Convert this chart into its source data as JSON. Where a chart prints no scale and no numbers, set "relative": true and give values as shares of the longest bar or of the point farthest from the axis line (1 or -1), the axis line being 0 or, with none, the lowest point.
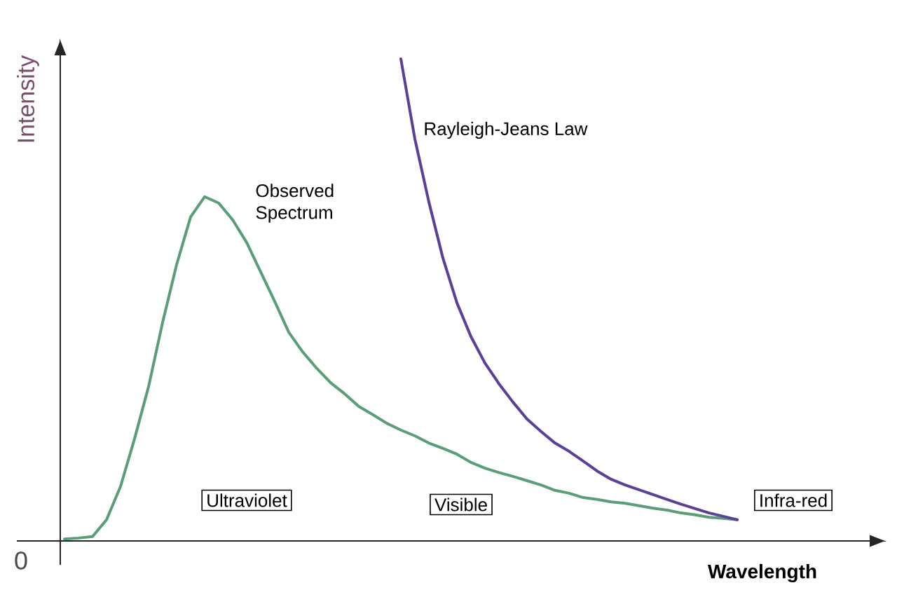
{
  "chart_data": {
    "type": "line",
    "relative": true,
    "xlabel": "Wavelength",
    "ylabel": "Intensity",
    "categories": [
      null,
      null,
      null,
      null,
      null,
      null,
      null,
      null,
      null,
      null,
      null,
      null,
      null,
      null,
      null,
      null,
      null,
      null,
      null,
      null,
      null,
      null,
      null,
      null,
      null,
      null,
      null,
      null,
      null,
      null,
      null,
      null,
      null,
      null,
      null,
      null,
      null,
      null,
      null,
      null,
      null,
      null,
      null,
      null,
      null,
      null,
      null,
      null,
      null
    ],
    "series": [
      {
        "name": "Observed Spectrum",
        "color": "#5a9e78",
        "values": [
          0.004,
          0.006,
          0.009,
          0.044,
          0.113,
          0.212,
          0.32,
          0.453,
          0.573,
          0.672,
          0.714,
          0.701,
          0.666,
          0.619,
          0.558,
          0.497,
          0.433,
          0.392,
          0.358,
          0.328,
          0.305,
          0.279,
          0.262,
          0.244,
          0.23,
          0.218,
          0.203,
          0.192,
          0.18,
          0.163,
          0.151,
          0.142,
          0.134,
          0.125,
          0.116,
          0.105,
          0.099,
          0.09,
          0.086,
          0.081,
          0.078,
          0.073,
          0.068,
          0.064,
          0.058,
          0.054,
          0.049,
          0.047,
          0.044
        ]
      },
      {
        "name": "Rayleigh-Jeans Law",
        "color": "#5b3f98",
        "values": [
          null,
          null,
          null,
          null,
          null,
          null,
          null,
          null,
          null,
          null,
          null,
          null,
          null,
          null,
          null,
          null,
          null,
          null,
          null,
          null,
          null,
          null,
          null,
          null,
          1,
          0.834,
          0.703,
          0.587,
          0.494,
          0.424,
          0.369,
          0.326,
          0.288,
          0.253,
          0.227,
          0.203,
          0.186,
          0.166,
          0.145,
          0.128,
          0.116,
          0.106,
          0.096,
          0.086,
          0.076,
          0.067,
          0.058,
          0.051,
          0.044
        ]
      }
    ],
    "annotations": [
      "0",
      "Ultraviolet",
      "Visible",
      "Infra-red"
    ]
  }
}
